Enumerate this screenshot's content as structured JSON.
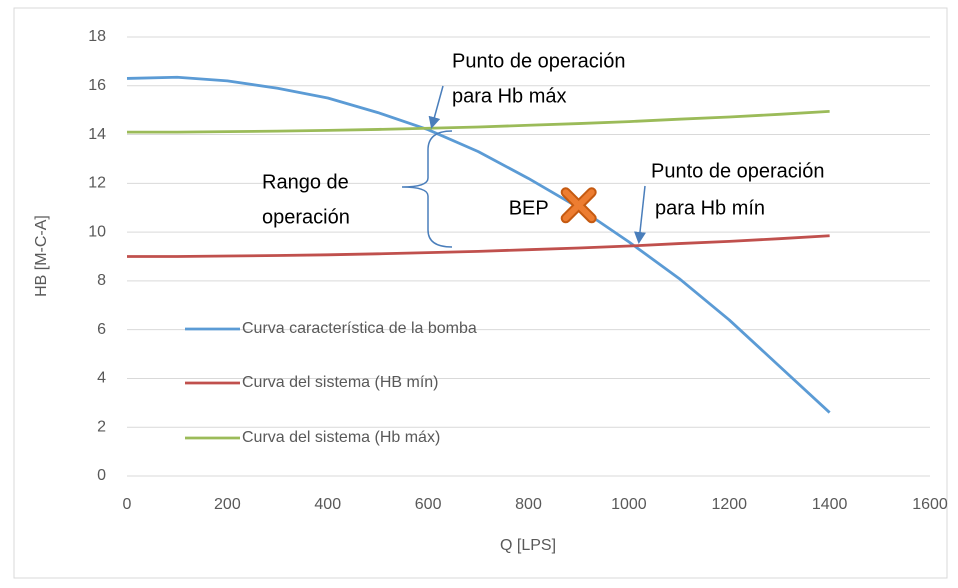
{
  "chart_data": {
    "type": "line",
    "x_label": "Q [LPS]",
    "y_label": "HB [M-C-A]",
    "x": [
      0,
      100,
      200,
      300,
      400,
      500,
      600,
      700,
      800,
      900,
      1000,
      1100,
      1200,
      1300,
      1400
    ],
    "series": [
      {
        "name": "Curva característica de la bomba",
        "color": "#5b9bd5",
        "values": [
          16.3,
          16.35,
          16.2,
          15.9,
          15.5,
          14.9,
          14.2,
          13.3,
          12.2,
          11.0,
          9.6,
          8.1,
          6.4,
          4.5,
          2.6
        ]
      },
      {
        "name": "Curva del sistema (HB mín)",
        "color": "#c0504d",
        "values": [
          9.0,
          9.0,
          9.02,
          9.04,
          9.07,
          9.11,
          9.16,
          9.21,
          9.28,
          9.35,
          9.43,
          9.53,
          9.62,
          9.73,
          9.85
        ]
      },
      {
        "name": "Curva del sistema (Hb máx)",
        "color": "#9bbb59",
        "values": [
          14.1,
          14.1,
          14.12,
          14.14,
          14.17,
          14.21,
          14.26,
          14.31,
          14.38,
          14.45,
          14.53,
          14.63,
          14.72,
          14.83,
          14.95
        ]
      }
    ],
    "bep": {
      "label": "BEP",
      "x": 900,
      "y": 11.1,
      "color": "#ed7d31"
    },
    "annotations": [
      "Punto de operación",
      "para Hb máx",
      "Rango de",
      "operación",
      "Punto de operación",
      "para Hb mín"
    ],
    "xlim": [
      0,
      1600
    ],
    "xticks": [
      0,
      200,
      400,
      600,
      800,
      1000,
      1200,
      1400,
      1600
    ],
    "ylim": [
      0,
      18
    ],
    "yticks": [
      0,
      2,
      4,
      6,
      8,
      10,
      12,
      14,
      16,
      18
    ],
    "grid": true,
    "legend": "left"
  }
}
